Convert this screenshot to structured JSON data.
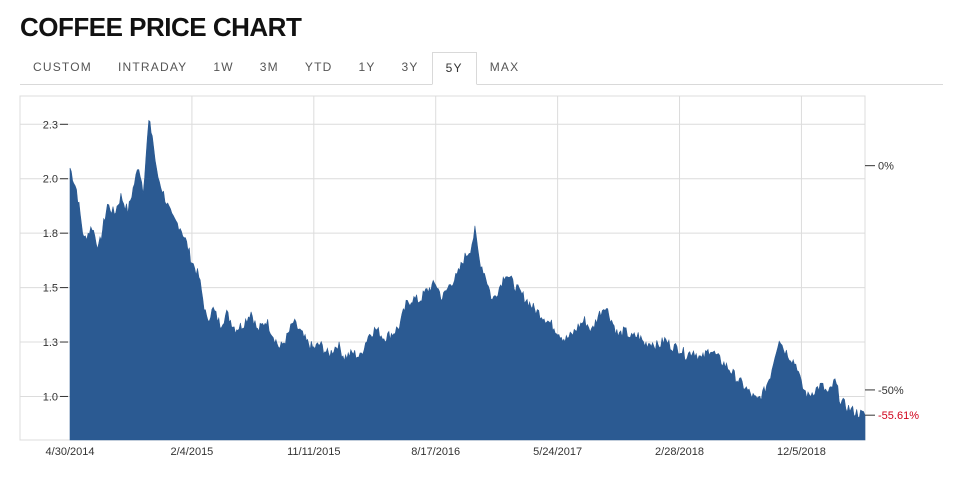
{
  "page": {
    "title": "COFFEE PRICE CHART"
  },
  "tabs": [
    {
      "label": "CUSTOM",
      "active": false
    },
    {
      "label": "INTRADAY",
      "active": false
    },
    {
      "label": "1W",
      "active": false
    },
    {
      "label": "3M",
      "active": false
    },
    {
      "label": "YTD",
      "active": false
    },
    {
      "label": "1Y",
      "active": false
    },
    {
      "label": "3Y",
      "active": false
    },
    {
      "label": "5Y",
      "active": true
    },
    {
      "label": "MAX",
      "active": false
    }
  ],
  "colors": {
    "area": "#2b5a92",
    "grid": "#dcdcdc",
    "negative": "#d0021b"
  },
  "chart_data": {
    "type": "area",
    "title": "",
    "xlabel": "",
    "ylabel": "",
    "x_ticks": [
      "4/30/2014",
      "2/4/2015",
      "11/11/2015",
      "8/17/2016",
      "5/24/2017",
      "2/28/2018",
      "12/5/2018"
    ],
    "y_ticks": [
      {
        "value": 1.0,
        "label": "1.0"
      },
      {
        "value": 1.25,
        "label": "1.3"
      },
      {
        "value": 1.5,
        "label": "1.5"
      },
      {
        "value": 1.75,
        "label": "1.8"
      },
      {
        "value": 2.0,
        "label": "2.0"
      },
      {
        "value": 2.25,
        "label": "2.3"
      }
    ],
    "ylim": [
      0.8,
      2.38
    ],
    "xlim": [
      "2014-04-30",
      "2019-04-30"
    ],
    "grid": true,
    "right_axis": [
      {
        "value": 2.06,
        "label": "0%"
      },
      {
        "value": 1.03,
        "label": "-50%"
      },
      {
        "value": 0.914,
        "label": "-55.61%",
        "negative": true
      }
    ],
    "series": [
      {
        "values": [
          [
            "2014-04-30",
            2.05
          ],
          [
            "2014-05-15",
            1.95
          ],
          [
            "2014-06-01",
            1.72
          ],
          [
            "2014-06-20",
            1.78
          ],
          [
            "2014-07-05",
            1.68
          ],
          [
            "2014-07-25",
            1.88
          ],
          [
            "2014-08-10",
            1.84
          ],
          [
            "2014-08-25",
            1.92
          ],
          [
            "2014-09-10",
            1.85
          ],
          [
            "2014-09-25",
            1.98
          ],
          [
            "2014-10-05",
            2.06
          ],
          [
            "2014-10-15",
            1.95
          ],
          [
            "2014-10-28",
            2.26
          ],
          [
            "2014-11-05",
            2.2
          ],
          [
            "2014-11-15",
            2.03
          ],
          [
            "2014-12-01",
            1.93
          ],
          [
            "2014-12-20",
            1.82
          ],
          [
            "2015-01-08",
            1.78
          ],
          [
            "2015-01-20",
            1.72
          ],
          [
            "2015-02-04",
            1.62
          ],
          [
            "2015-02-20",
            1.55
          ],
          [
            "2015-03-10",
            1.35
          ],
          [
            "2015-03-25",
            1.4
          ],
          [
            "2015-04-10",
            1.33
          ],
          [
            "2015-04-25",
            1.38
          ],
          [
            "2015-05-15",
            1.31
          ],
          [
            "2015-06-01",
            1.33
          ],
          [
            "2015-06-20",
            1.39
          ],
          [
            "2015-07-05",
            1.3
          ],
          [
            "2015-07-25",
            1.35
          ],
          [
            "2015-08-10",
            1.28
          ],
          [
            "2015-08-25",
            1.22
          ],
          [
            "2015-09-10",
            1.27
          ],
          [
            "2015-09-25",
            1.34
          ],
          [
            "2015-10-10",
            1.3
          ],
          [
            "2015-10-25",
            1.25
          ],
          [
            "2015-11-11",
            1.22
          ],
          [
            "2015-11-25",
            1.24
          ],
          [
            "2015-12-15",
            1.19
          ],
          [
            "2016-01-05",
            1.24
          ],
          [
            "2016-01-20",
            1.18
          ],
          [
            "2016-02-10",
            1.2
          ],
          [
            "2016-02-25",
            1.18
          ],
          [
            "2016-03-15",
            1.28
          ],
          [
            "2016-04-01",
            1.31
          ],
          [
            "2016-04-20",
            1.27
          ],
          [
            "2016-05-10",
            1.29
          ],
          [
            "2016-05-25",
            1.32
          ],
          [
            "2016-06-10",
            1.42
          ],
          [
            "2016-06-25",
            1.45
          ],
          [
            "2016-07-10",
            1.44
          ],
          [
            "2016-07-25",
            1.48
          ],
          [
            "2016-08-17",
            1.52
          ],
          [
            "2016-09-01",
            1.45
          ],
          [
            "2016-09-20",
            1.52
          ],
          [
            "2016-10-05",
            1.55
          ],
          [
            "2016-10-20",
            1.63
          ],
          [
            "2016-11-05",
            1.68
          ],
          [
            "2016-11-15",
            1.76
          ],
          [
            "2016-11-25",
            1.63
          ],
          [
            "2016-12-10",
            1.55
          ],
          [
            "2016-12-25",
            1.44
          ],
          [
            "2017-01-10",
            1.5
          ],
          [
            "2017-01-25",
            1.57
          ],
          [
            "2017-02-10",
            1.52
          ],
          [
            "2017-02-25",
            1.48
          ],
          [
            "2017-03-15",
            1.44
          ],
          [
            "2017-04-01",
            1.4
          ],
          [
            "2017-04-20",
            1.37
          ],
          [
            "2017-05-10",
            1.33
          ],
          [
            "2017-05-24",
            1.3
          ],
          [
            "2017-06-10",
            1.26
          ],
          [
            "2017-06-25",
            1.28
          ],
          [
            "2017-07-10",
            1.32
          ],
          [
            "2017-07-25",
            1.35
          ],
          [
            "2017-08-10",
            1.3
          ],
          [
            "2017-08-25",
            1.37
          ],
          [
            "2017-09-10",
            1.42
          ],
          [
            "2017-09-25",
            1.35
          ],
          [
            "2017-10-10",
            1.28
          ],
          [
            "2017-10-25",
            1.3
          ],
          [
            "2017-11-10",
            1.27
          ],
          [
            "2017-11-25",
            1.28
          ],
          [
            "2017-12-10",
            1.24
          ],
          [
            "2017-12-25",
            1.25
          ],
          [
            "2018-01-10",
            1.23
          ],
          [
            "2018-01-25",
            1.26
          ],
          [
            "2018-02-10",
            1.23
          ],
          [
            "2018-02-28",
            1.22
          ],
          [
            "2018-03-15",
            1.19
          ],
          [
            "2018-04-01",
            1.21
          ],
          [
            "2018-04-20",
            1.17
          ],
          [
            "2018-05-10",
            1.22
          ],
          [
            "2018-05-25",
            1.18
          ],
          [
            "2018-06-10",
            1.15
          ],
          [
            "2018-06-25",
            1.12
          ],
          [
            "2018-07-10",
            1.08
          ],
          [
            "2018-07-25",
            1.05
          ],
          [
            "2018-08-10",
            1.01
          ],
          [
            "2018-08-25",
            0.98
          ],
          [
            "2018-09-10",
            1.02
          ],
          [
            "2018-09-25",
            1.1
          ],
          [
            "2018-10-05",
            1.19
          ],
          [
            "2018-10-15",
            1.27
          ],
          [
            "2018-10-25",
            1.22
          ],
          [
            "2018-11-10",
            1.18
          ],
          [
            "2018-11-25",
            1.14
          ],
          [
            "2018-12-05",
            1.05
          ],
          [
            "2018-12-20",
            1.0
          ],
          [
            "2019-01-05",
            1.03
          ],
          [
            "2019-01-20",
            1.05
          ],
          [
            "2019-02-05",
            1.01
          ],
          [
            "2019-02-20",
            1.07
          ],
          [
            "2019-03-05",
            0.98
          ],
          [
            "2019-03-20",
            0.95
          ],
          [
            "2019-04-05",
            0.93
          ],
          [
            "2019-04-20",
            0.92
          ],
          [
            "2019-04-30",
            0.914
          ]
        ]
      }
    ]
  }
}
